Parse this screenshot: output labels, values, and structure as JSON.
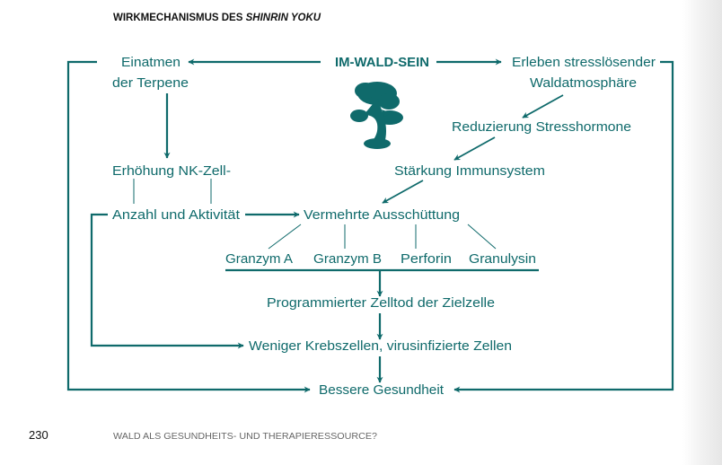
{
  "header": {
    "title_prefix": "WIRKMECHANISMUS DES ",
    "title_italic": "SHINRIN YOKU"
  },
  "colors": {
    "accent": "#0f6a6b",
    "text": "#111111",
    "footer": "#666666"
  },
  "diagram": {
    "center": "IM-WALD-SEIN",
    "tree_icon": "bonsai-tree-icon",
    "left_1": "Einatmen",
    "left_2": "der Terpene",
    "left_3": "Erhöhung NK-Zell-",
    "left_4": "Anzahl und Aktivität",
    "right_1": "Erleben stresslösender",
    "right_2": "Waldatmosphäre",
    "right_3": "Reduzierung Stresshormone",
    "right_4": "Stärkung Immunsystem",
    "release": "Vermehrte Ausschüttung",
    "substances": [
      "Granzym A",
      "Granzym B",
      "Perforin",
      "Granulysin"
    ],
    "step_1": "Programmierter Zelltod der Zielzelle",
    "step_2": "Weniger Krebszellen, virusinfizierte Zellen",
    "result": "Bessere Gesundheit"
  },
  "footer": {
    "page_number": "230",
    "running_title": "WALD ALS GESUNDHEITS- UND THERAPIERESSOURCE?"
  }
}
